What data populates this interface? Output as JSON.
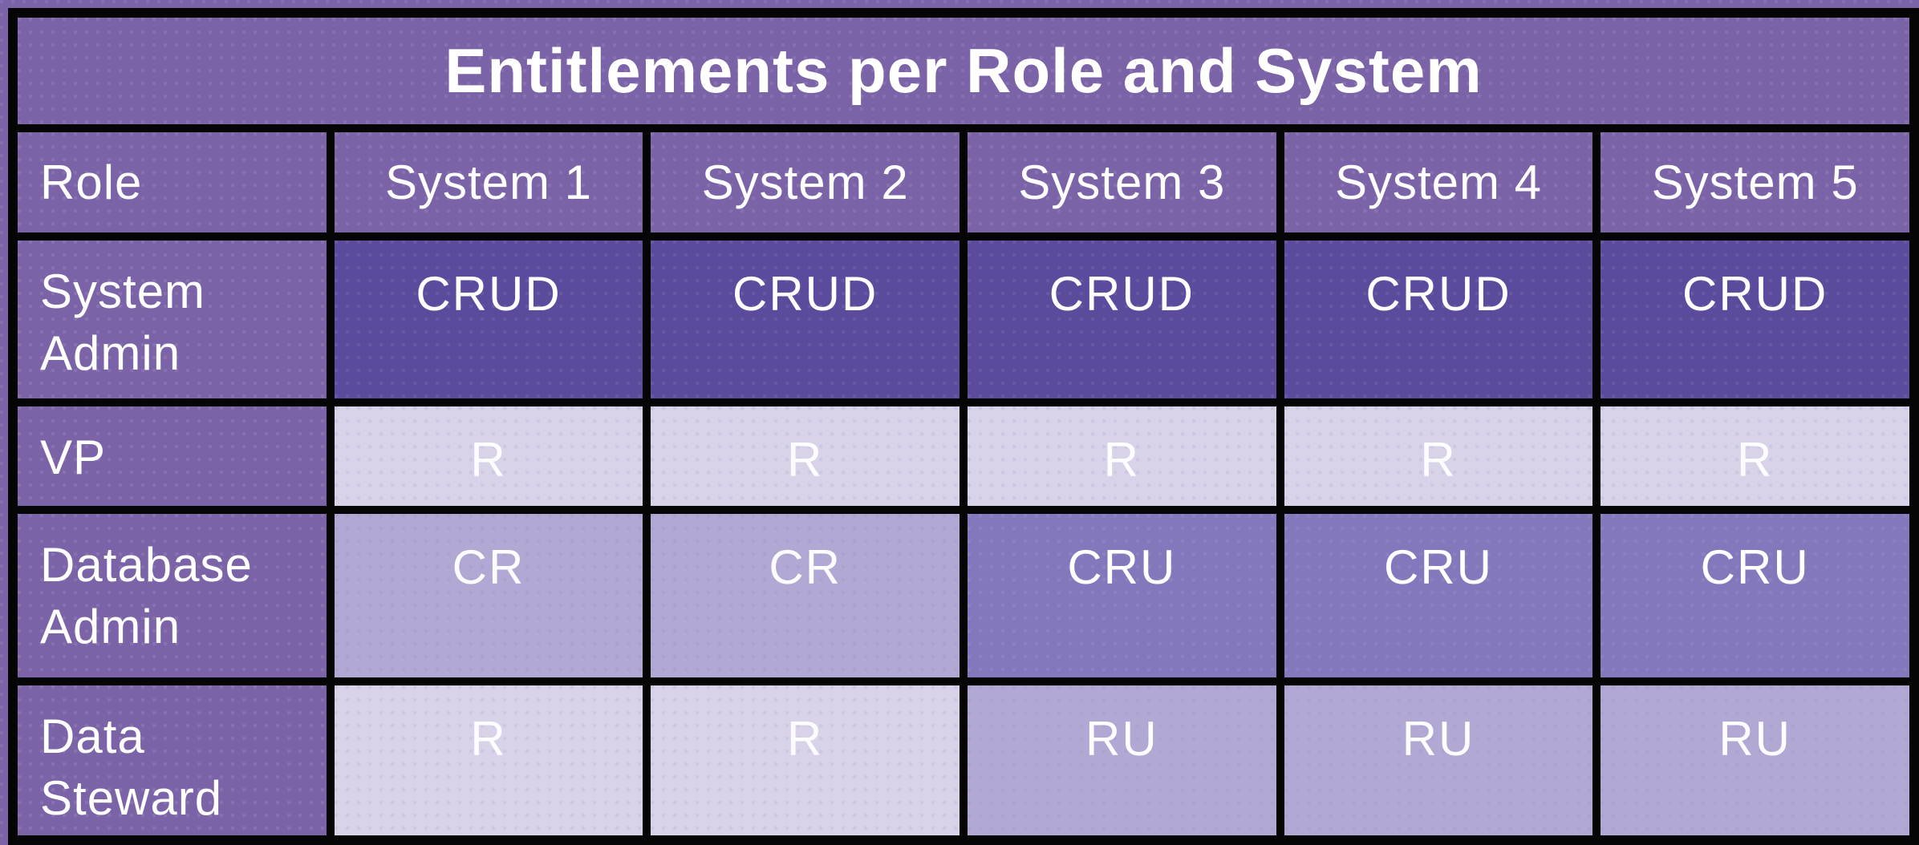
{
  "title": "Entitlements per Role and System",
  "colors": {
    "page_background": "#7B63A8",
    "grid_lines": "#050505",
    "header_and_role_cells": "#7B63A8",
    "level_4_crud": "#5C4B9C",
    "level_3_cru": "#8478BC",
    "level_2_cr_ru": "#B2A8D4",
    "level_1_r": "#D8D3E8",
    "text": "#FFFFFF"
  },
  "chart_data": {
    "type": "table",
    "title": "Entitlements per Role and System",
    "columns": [
      "Role",
      "System 1",
      "System 2",
      "System 3",
      "System 4",
      "System 5"
    ],
    "rows": [
      {
        "role": "System Admin",
        "cells": [
          "CRUD",
          "CRUD",
          "CRUD",
          "CRUD",
          "CRUD"
        ],
        "levels": [
          4,
          4,
          4,
          4,
          4
        ]
      },
      {
        "role": "VP",
        "cells": [
          "R",
          "R",
          "R",
          "R",
          "R"
        ],
        "levels": [
          1,
          1,
          1,
          1,
          1
        ]
      },
      {
        "role": "Database Admin",
        "cells": [
          "CR",
          "CR",
          "CRU",
          "CRU",
          "CRU"
        ],
        "levels": [
          2,
          2,
          3,
          3,
          3
        ]
      },
      {
        "role": "Data Steward",
        "cells": [
          "R",
          "R",
          "RU",
          "RU",
          "RU"
        ],
        "levels": [
          1,
          1,
          2,
          2,
          2
        ]
      }
    ],
    "layout_hints": {
      "title_row_spans_all_columns": true,
      "shading": "darker cell background indicates more entitlements (CRUD darkest, R lightest)"
    }
  }
}
